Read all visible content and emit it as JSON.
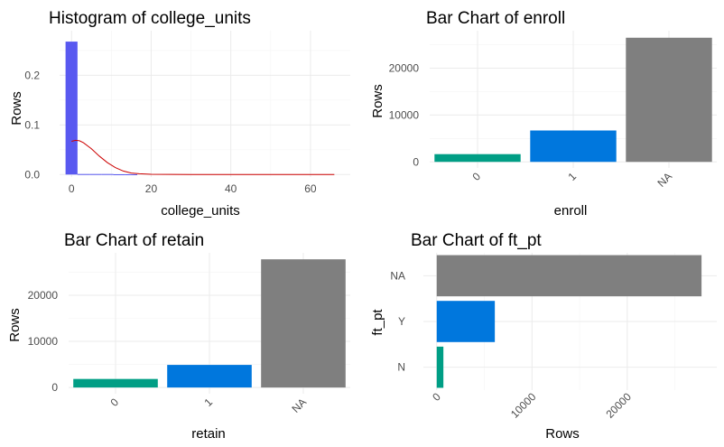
{
  "chart_data": [
    {
      "type": "histogram",
      "title": "Histogram of college_units",
      "xlabel": "college_units",
      "ylabel": "Rows",
      "xlim": [
        -3,
        70
      ],
      "ylim": [
        -0.005,
        0.29
      ],
      "x_ticks": [
        "0",
        "20",
        "40",
        "60"
      ],
      "x_tick_values": [
        0,
        20,
        40,
        60
      ],
      "y_ticks": [
        "0.0",
        "0.1",
        "0.2"
      ],
      "y_tick_values": [
        0,
        0.1,
        0.2
      ],
      "bin_width": 3,
      "bins": [
        {
          "x": 0,
          "value": 0.268
        },
        {
          "x": 3,
          "value": 0.001
        },
        {
          "x": 6,
          "value": 0.001
        },
        {
          "x": 9,
          "value": 0.001
        },
        {
          "x": 12,
          "value": 0.0005
        },
        {
          "x": 15,
          "value": 0.0005
        }
      ],
      "density_curve": {
        "x": [
          0,
          1,
          2,
          3,
          5,
          7,
          9,
          11,
          13,
          15,
          17,
          20,
          25,
          30,
          40,
          50,
          60,
          66
        ],
        "y": [
          0.067,
          0.069,
          0.068,
          0.064,
          0.052,
          0.037,
          0.024,
          0.014,
          0.007,
          0.003,
          0.0015,
          0.0005,
          0.0002,
          0.0001,
          0.0001,
          0.0001,
          0.0001,
          0
        ]
      },
      "bar_color": "#5959f0",
      "curve_color": "#cc0000"
    },
    {
      "type": "bar",
      "title": "Bar Chart of enroll",
      "xlabel": "enroll",
      "ylabel": "Rows",
      "categories": [
        "0",
        "1",
        "NA"
      ],
      "values": [
        1650,
        6700,
        26500
      ],
      "colors": [
        "#009e85",
        "#0077dd",
        "#7f7f7f"
      ],
      "ylim": [
        -1300,
        28000
      ],
      "y_ticks": [
        "0",
        "10000",
        "20000"
      ],
      "y_tick_values": [
        0,
        10000,
        20000
      ]
    },
    {
      "type": "bar",
      "title": "Bar Chart of retain",
      "xlabel": "retain",
      "ylabel": "Rows",
      "categories": [
        "0",
        "1",
        "NA"
      ],
      "values": [
        1850,
        4900,
        27800
      ],
      "colors": [
        "#009e85",
        "#0077dd",
        "#7f7f7f"
      ],
      "ylim": [
        -1350,
        29200
      ],
      "y_ticks": [
        "0",
        "10000",
        "20000"
      ],
      "y_tick_values": [
        0,
        10000,
        20000
      ]
    },
    {
      "type": "bar",
      "orientation": "horizontal",
      "title": "Bar Chart of ft_pt",
      "xlabel": "Rows",
      "ylabel": "ft_pt",
      "categories": [
        "N",
        "Y",
        "NA"
      ],
      "values": [
        700,
        6100,
        27800
      ],
      "colors": [
        "#009e85",
        "#0077dd",
        "#7f7f7f"
      ],
      "xlim": [
        -1400,
        29400
      ],
      "x_ticks": [
        "0",
        "10000",
        "20000"
      ],
      "x_tick_values": [
        0,
        10000,
        20000
      ]
    }
  ]
}
